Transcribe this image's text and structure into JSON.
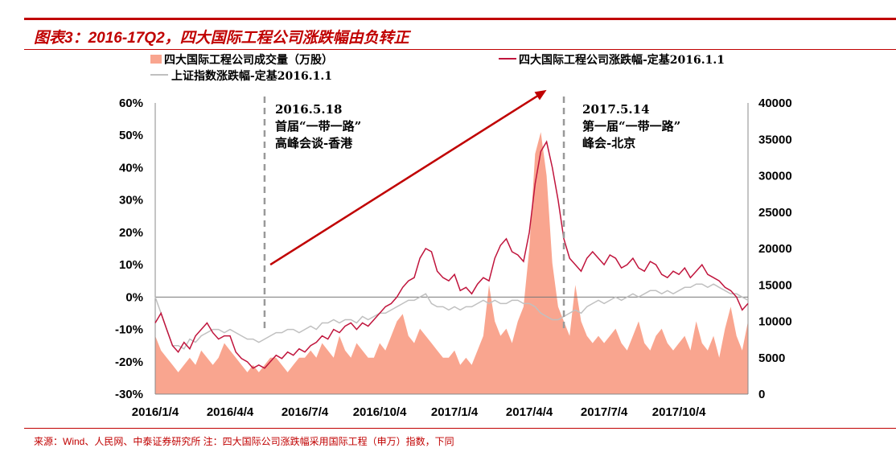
{
  "title": "图表3：2016-17Q2，四大国际工程公司涨跌幅由负转正",
  "source": "来源：Wind、人民网、中泰证券研究所   注：四大国际公司涨跌幅采用国际工程（申万）指数，下同",
  "colors": {
    "accent": "#c00000",
    "volume": "#f9a58f",
    "red_line": "#c0143c",
    "gray_line": "#c0c0c0"
  },
  "chart_data": {
    "type": "bar+line",
    "title": "图表3：2016-17Q2，四大国际工程公司涨跌幅由负转正",
    "frequency": "weekly, 2016/1/4 – 2017/12/29",
    "x_ticks": [
      "2016/1/4",
      "2016/4/4",
      "2016/7/4",
      "2016/10/4",
      "2017/1/4",
      "2017/4/4",
      "2017/7/4",
      "2017/10/4"
    ],
    "left_axis": {
      "ticks": [
        "60%",
        "50%",
        "40%",
        "30%",
        "20%",
        "10%",
        "0%",
        "-10%",
        "-20%",
        "-30%"
      ],
      "range": [
        -30,
        60
      ],
      "unit": "%"
    },
    "right_axis": {
      "ticks": [
        "40000",
        "35000",
        "30000",
        "25000",
        "20000",
        "15000",
        "10000",
        "5000",
        "0"
      ],
      "range": [
        0,
        40000
      ]
    },
    "legend": [
      "四大国际工程公司成交量（万股）",
      "四大国际工程公司涨跌幅-定基2016.1.1",
      "上证指数涨跌幅-定基2016.1.1"
    ],
    "legend_placement": "top",
    "series": [
      {
        "name": "四大国际工程公司成交量（万股）",
        "type": "area",
        "axis": "right",
        "unit": "万股",
        "values": [
          8000,
          6000,
          5000,
          4000,
          3000,
          4000,
          5000,
          4000,
          6000,
          5000,
          4000,
          5000,
          7000,
          6000,
          5000,
          4000,
          3000,
          4000,
          3000,
          4000,
          5000,
          5000,
          4000,
          3000,
          4000,
          5000,
          5000,
          6000,
          5000,
          7000,
          6000,
          5000,
          8000,
          6000,
          5000,
          7000,
          6000,
          5000,
          5000,
          7000,
          6000,
          8000,
          10000,
          11000,
          8000,
          7000,
          9000,
          8000,
          7000,
          6000,
          5000,
          5000,
          6000,
          4000,
          5000,
          4000,
          6000,
          8000,
          15000,
          10000,
          8000,
          9000,
          7000,
          10000,
          12000,
          20000,
          33000,
          36000,
          30000,
          18000,
          12000,
          10000,
          8000,
          15000,
          10000,
          8000,
          7000,
          8000,
          7000,
          8000,
          9000,
          7000,
          6000,
          8000,
          10000,
          7000,
          6000,
          8000,
          9000,
          7000,
          6000,
          7000,
          8000,
          6000,
          10000,
          7000,
          6000,
          8000,
          5000,
          9000,
          12000,
          8000,
          6000,
          10000
        ]
      },
      {
        "name": "四大国际工程公司涨跌幅-定基2016.1.1",
        "type": "line",
        "axis": "left",
        "unit": "%",
        "values": [
          -8,
          -5,
          -10,
          -15,
          -17,
          -14,
          -16,
          -12,
          -10,
          -8,
          -11,
          -13,
          -12,
          -12,
          -17,
          -19,
          -20,
          -22,
          -21,
          -22,
          -20,
          -18,
          -19,
          -17,
          -18,
          -16,
          -17,
          -15,
          -14,
          -12,
          -13,
          -10,
          -11,
          -9,
          -8,
          -10,
          -8,
          -9,
          -7,
          -5,
          -3,
          -2,
          0,
          3,
          5,
          6,
          12,
          15,
          14,
          8,
          6,
          5,
          7,
          2,
          3,
          1,
          4,
          6,
          5,
          12,
          16,
          18,
          14,
          13,
          11,
          20,
          35,
          45,
          48,
          40,
          30,
          18,
          12,
          10,
          8,
          12,
          14,
          12,
          10,
          13,
          12,
          9,
          10,
          12,
          9,
          8,
          11,
          10,
          7,
          6,
          8,
          7,
          9,
          6,
          8,
          10,
          7,
          6,
          5,
          3,
          2,
          0,
          -4,
          -2
        ]
      },
      {
        "name": "上证指数涨跌幅-定基2016.1.1",
        "type": "line",
        "axis": "left",
        "unit": "%",
        "values": [
          0,
          -5,
          -10,
          -15,
          -15,
          -16,
          -13,
          -14,
          -12,
          -11,
          -10,
          -10,
          -11,
          -10,
          -11,
          -12,
          -13,
          -13,
          -14,
          -13,
          -12,
          -11,
          -11,
          -10,
          -10,
          -11,
          -10,
          -9,
          -10,
          -8,
          -8,
          -7,
          -8,
          -7,
          -7,
          -8,
          -6,
          -7,
          -6,
          -5,
          -5,
          -4,
          -3,
          -2,
          -1,
          -1,
          0,
          1,
          -2,
          -3,
          -3,
          -4,
          -3,
          -4,
          -3,
          -3,
          -2,
          -1,
          -2,
          -1,
          -2,
          -2,
          -1,
          -1,
          -2,
          -2,
          -3,
          -5,
          -6,
          -7,
          -7,
          -6,
          -5,
          -4,
          -5,
          -3,
          -2,
          -1,
          -2,
          -1,
          0,
          -1,
          0,
          1,
          0,
          1,
          2,
          2,
          1,
          2,
          1,
          2,
          3,
          3,
          4,
          4,
          3,
          4,
          3,
          2,
          1,
          1,
          0,
          -1
        ]
      }
    ],
    "annotations": [
      {
        "date_week": 19,
        "lines": [
          "2016.5.18",
          "首届“一带一路”",
          "高峰会谈-香港"
        ]
      },
      {
        "date_week": 71,
        "lines": [
          "2017.5.14",
          "第一届“一带一路”",
          "峰会-北京"
        ]
      }
    ],
    "arrow": {
      "from_week": 20,
      "from_value": 10,
      "to_week": 68,
      "to_value": 64
    }
  }
}
